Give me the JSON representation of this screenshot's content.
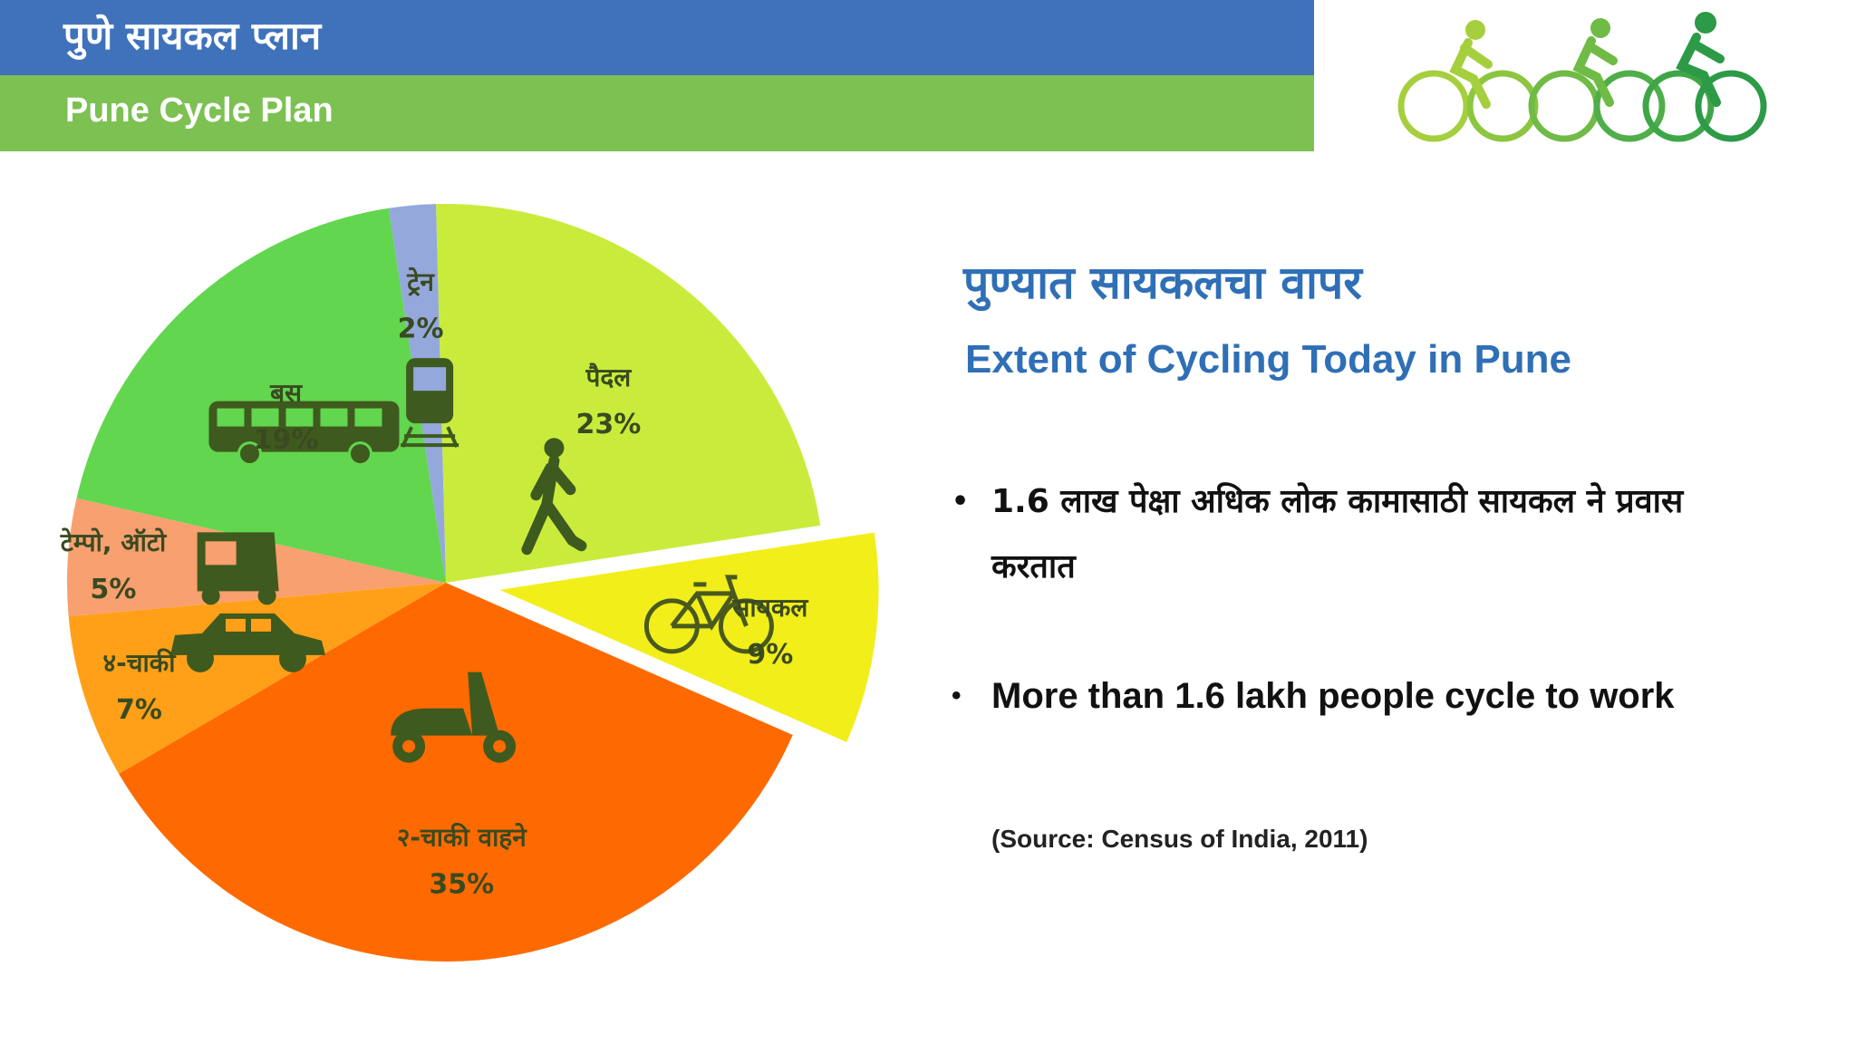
{
  "header": {
    "title_marathi": "पुणे सायकल प्लान",
    "title_english": "Pune Cycle Plan",
    "logo_icon": "three-cyclists-logo-icon"
  },
  "colors": {
    "header_blue": "#3f72bb",
    "header_green": "#7cc152",
    "heading_blue": "#2f6fb6"
  },
  "chart_data": {
    "type": "pie",
    "exploded": [
      "सायकल"
    ],
    "slices": [
      {
        "label": "पैदल",
        "value": 23,
        "value_label": "23%",
        "color": "#c9ec3c",
        "icon": "pedestrian-icon"
      },
      {
        "label": "सायकल",
        "value": 9,
        "value_label": "9%",
        "color": "#f2ee1a",
        "icon": "bicycle-icon"
      },
      {
        "label": "२-चाकी वाहने",
        "value": 35,
        "value_label": "35%",
        "color": "#ff6a00",
        "icon": "scooter-icon"
      },
      {
        "label": "४-चाकी",
        "value": 7,
        "value_label": "7%",
        "color": "#ffa018",
        "icon": "car-icon"
      },
      {
        "label": "टेम्पो, ऑटो",
        "value": 5,
        "value_label": "5%",
        "color": "#f8a070",
        "icon": "auto-rickshaw-icon"
      },
      {
        "label": "बस",
        "value": 19,
        "value_label": "19%",
        "color": "#61d64e",
        "icon": "bus-icon"
      },
      {
        "label": "ट्रेन",
        "value": 2,
        "value_label": "2%",
        "color": "#94a8dc",
        "icon": "train-icon"
      }
    ]
  },
  "right_panel": {
    "title_marathi": "पुण्यात सायकलचा  वापर",
    "title_english": "Extent of Cycling Today in Pune",
    "bullets": [
      "1.6 लाख पेक्षा अधिक लोक कामासाठी सायकल ने प्रवास करतात",
      "More than 1.6 lakh people cycle to work"
    ],
    "bullet_symbol": "•",
    "source": "(Source: Census of India, 2011)"
  }
}
